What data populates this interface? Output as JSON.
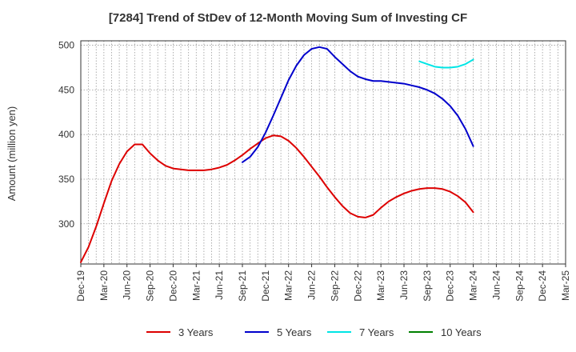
{
  "chart_data": {
    "type": "line",
    "title": "[7284]  Trend of StDev of 12-Month Moving Sum of Investing CF",
    "ylabel": "Amount (million yen)",
    "xlabel": "",
    "ylim": [
      255,
      505
    ],
    "yticks": [
      300,
      350,
      400,
      450,
      500
    ],
    "x_tick_labels": [
      "Dec-19",
      "Mar-20",
      "Jun-20",
      "Sep-20",
      "Dec-20",
      "Mar-21",
      "Jun-21",
      "Sep-21",
      "Dec-21",
      "Mar-22",
      "Jun-22",
      "Sep-22",
      "Dec-22",
      "Mar-23",
      "Jun-23",
      "Sep-23",
      "Dec-23",
      "Mar-24",
      "Jun-24",
      "Sep-24",
      "Dec-24",
      "Mar-25"
    ],
    "grid": true,
    "legend_position": "bottom",
    "series": [
      {
        "name": "3 Years",
        "color": "#dd0000",
        "points": [
          [
            "Dec-19",
            257
          ],
          [
            "Jan-20",
            274
          ],
          [
            "Feb-20",
            297
          ],
          [
            "Mar-20",
            323
          ],
          [
            "Apr-20",
            348
          ],
          [
            "May-20",
            367
          ],
          [
            "Jun-20",
            381
          ],
          [
            "Jul-20",
            389
          ],
          [
            "Aug-20",
            389
          ],
          [
            "Sep-20",
            379
          ],
          [
            "Oct-20",
            371
          ],
          [
            "Nov-20",
            365
          ],
          [
            "Dec-20",
            362
          ],
          [
            "Jan-21",
            361
          ],
          [
            "Feb-21",
            360
          ],
          [
            "Mar-21",
            360
          ],
          [
            "Apr-21",
            360
          ],
          [
            "May-21",
            361
          ],
          [
            "Jun-21",
            363
          ],
          [
            "Jul-21",
            366
          ],
          [
            "Aug-21",
            371
          ],
          [
            "Sep-21",
            377
          ],
          [
            "Oct-21",
            384
          ],
          [
            "Nov-21",
            390
          ],
          [
            "Dec-21",
            396
          ],
          [
            "Jan-22",
            399
          ],
          [
            "Feb-22",
            398
          ],
          [
            "Mar-22",
            393
          ],
          [
            "Apr-22",
            385
          ],
          [
            "May-22",
            375
          ],
          [
            "Jun-22",
            364
          ],
          [
            "Jul-22",
            353
          ],
          [
            "Aug-22",
            341
          ],
          [
            "Sep-22",
            330
          ],
          [
            "Oct-22",
            320
          ],
          [
            "Nov-22",
            312
          ],
          [
            "Dec-22",
            308
          ],
          [
            "Jan-23",
            307
          ],
          [
            "Feb-23",
            310
          ],
          [
            "Mar-23",
            318
          ],
          [
            "Apr-23",
            325
          ],
          [
            "May-23",
            330
          ],
          [
            "Jun-23",
            334
          ],
          [
            "Jul-23",
            337
          ],
          [
            "Aug-23",
            339
          ],
          [
            "Sep-23",
            340
          ],
          [
            "Oct-23",
            340
          ],
          [
            "Nov-23",
            339
          ],
          [
            "Dec-23",
            336
          ],
          [
            "Jan-24",
            331
          ],
          [
            "Feb-24",
            324
          ],
          [
            "Mar-24",
            313
          ]
        ]
      },
      {
        "name": "5 Years",
        "color": "#0000cc",
        "points": [
          [
            "Sep-21",
            369
          ],
          [
            "Oct-21",
            375
          ],
          [
            "Nov-21",
            386
          ],
          [
            "Dec-21",
            402
          ],
          [
            "Jan-22",
            421
          ],
          [
            "Feb-22",
            441
          ],
          [
            "Mar-22",
            461
          ],
          [
            "Apr-22",
            477
          ],
          [
            "May-22",
            489
          ],
          [
            "Jun-22",
            496
          ],
          [
            "Jul-22",
            498
          ],
          [
            "Aug-22",
            496
          ],
          [
            "Sep-22",
            487
          ],
          [
            "Oct-22",
            479
          ],
          [
            "Nov-22",
            471
          ],
          [
            "Dec-22",
            465
          ],
          [
            "Jan-23",
            462
          ],
          [
            "Feb-23",
            460
          ],
          [
            "Mar-23",
            460
          ],
          [
            "Apr-23",
            459
          ],
          [
            "May-23",
            458
          ],
          [
            "Jun-23",
            457
          ],
          [
            "Jul-23",
            455
          ],
          [
            "Aug-23",
            453
          ],
          [
            "Sep-23",
            450
          ],
          [
            "Oct-23",
            446
          ],
          [
            "Nov-23",
            440
          ],
          [
            "Dec-23",
            432
          ],
          [
            "Jan-24",
            421
          ],
          [
            "Feb-24",
            406
          ],
          [
            "Mar-24",
            387
          ]
        ]
      },
      {
        "name": "7 Years",
        "color": "#00e5e5",
        "points": [
          [
            "Aug-23",
            482
          ],
          [
            "Sep-23",
            479
          ],
          [
            "Oct-23",
            476
          ],
          [
            "Nov-23",
            475
          ],
          [
            "Dec-23",
            475
          ],
          [
            "Jan-24",
            476
          ],
          [
            "Feb-24",
            479
          ],
          [
            "Mar-24",
            484
          ]
        ]
      },
      {
        "name": "10 Years",
        "color": "#008000",
        "points": []
      }
    ]
  }
}
